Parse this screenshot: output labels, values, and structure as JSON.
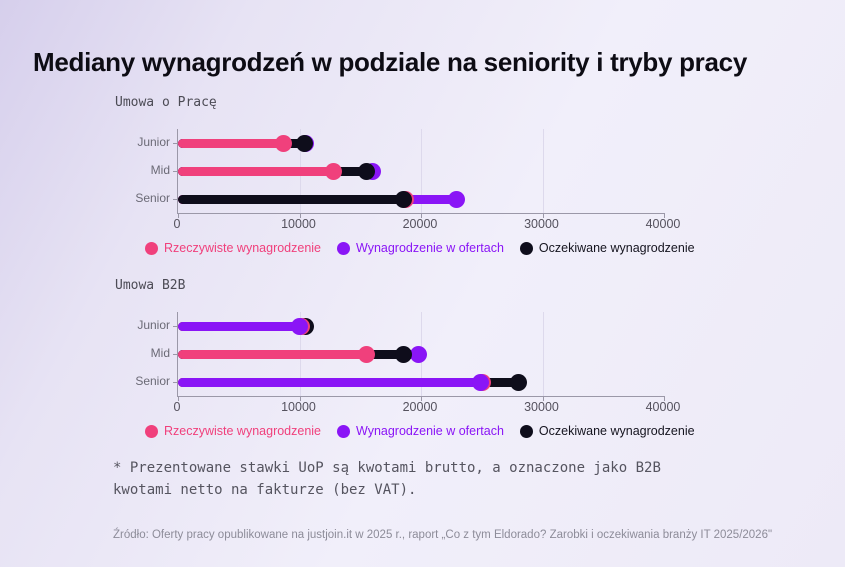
{
  "page": {
    "title": "Mediany wynagrodzeń w podziale na seniority i tryby pracy"
  },
  "chart_data": [
    {
      "type": "bar",
      "orientation": "horizontal",
      "title": "Umowa o Pracę",
      "categories": [
        "Junior",
        "Mid",
        "Senior"
      ],
      "xlim": [
        0,
        40000
      ],
      "ticks": [
        0,
        10000,
        20000,
        30000,
        40000
      ],
      "grid": true,
      "legend_position": "bottom",
      "series": [
        {
          "key": "actual",
          "name": "Rzeczywiste wynagrodzenie",
          "color": "#F0407C",
          "values": [
            8700,
            12800,
            18700
          ]
        },
        {
          "key": "offers",
          "name": "Wynagrodzenie w ofertach",
          "color": "#8A15F6",
          "values": [
            10500,
            16000,
            22900
          ]
        },
        {
          "key": "expected",
          "name": "Oczekiwane wynagrodzenie",
          "color": "#0E0D1B",
          "values": [
            10400,
            15500,
            18600
          ]
        }
      ]
    },
    {
      "type": "bar",
      "orientation": "horizontal",
      "title": "Umowa B2B",
      "categories": [
        "Junior",
        "Mid",
        "Senior"
      ],
      "xlim": [
        0,
        40000
      ],
      "ticks": [
        0,
        10000,
        20000,
        30000,
        40000
      ],
      "grid": true,
      "legend_position": "bottom",
      "series": [
        {
          "key": "actual",
          "name": "Rzeczywiste wynagrodzenie",
          "color": "#F0407C",
          "values": [
            10200,
            15500,
            25100
          ]
        },
        {
          "key": "offers",
          "name": "Wynagrodzenie w ofertach",
          "color": "#8A15F6",
          "values": [
            10000,
            19800,
            24900
          ]
        },
        {
          "key": "expected",
          "name": "Oczekiwane wynagrodzenie",
          "color": "#0E0D1B",
          "values": [
            10500,
            18600,
            28000
          ]
        }
      ]
    }
  ],
  "footnote": {
    "line1": "* Prezentowane stawki UoP są kwotami brutto, a oznaczone jako B2B",
    "line2": "kwotami netto na fakturze (bez VAT)."
  },
  "source": {
    "text": "Źródło: Oferty pracy opublikowane na justjoin.it w 2025 r., raport „Co z tym Eldorado? Zarobki i oczekiwania branży IT 2025/2026\""
  }
}
